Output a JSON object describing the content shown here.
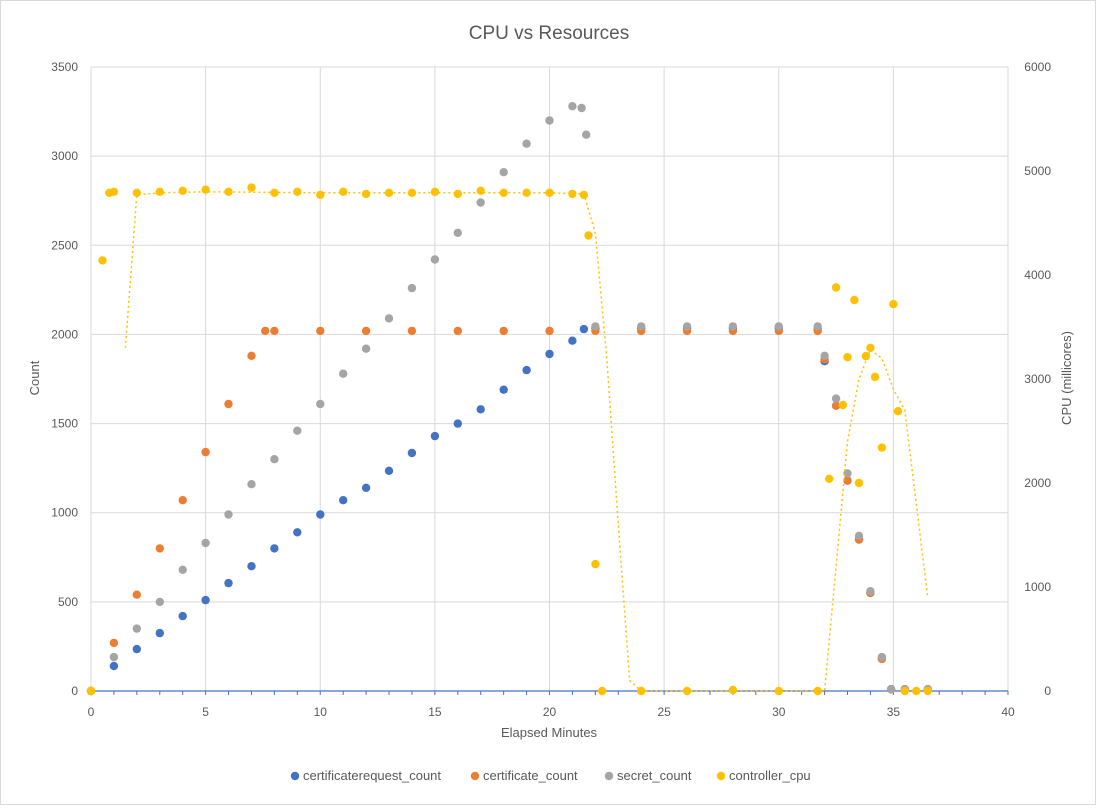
{
  "chart_data": {
    "type": "scatter",
    "title": "CPU vs Resources",
    "xlabel": "Elapsed Minutes",
    "ylabel": "Count",
    "y2label": "CPU (millicores)",
    "xlim": [
      0,
      40
    ],
    "ylim": [
      0,
      3500
    ],
    "y2lim": [
      0,
      6000
    ],
    "xticks": [
      "0",
      "5",
      "10",
      "15",
      "20",
      "25",
      "30",
      "35",
      "40"
    ],
    "yticks": [
      "0",
      "500",
      "1000",
      "1500",
      "2000",
      "2500",
      "3000",
      "3500"
    ],
    "y2ticks": [
      "0",
      "1000",
      "2000",
      "3000",
      "4000",
      "5000",
      "6000"
    ],
    "grid": true,
    "legend_position": "bottom",
    "series": [
      {
        "name": "certificaterequest_count",
        "axis": "left",
        "color": "#4472C4",
        "x": [
          0,
          1,
          2,
          3,
          4,
          5,
          6,
          7,
          8,
          9,
          10,
          11,
          12,
          13,
          14,
          15,
          16,
          17,
          18,
          19,
          20,
          21,
          21.5,
          22,
          24,
          26,
          28,
          30,
          31.7,
          32,
          32.5,
          33,
          33.5,
          34,
          34.5,
          34.9,
          35.5,
          36.5
        ],
        "y": [
          0,
          140,
          235,
          325,
          420,
          510,
          605,
          700,
          800,
          890,
          990,
          1070,
          1140,
          1235,
          1335,
          1430,
          1500,
          1580,
          1690,
          1800,
          1890,
          1965,
          2030,
          2035,
          2035,
          2035,
          2035,
          2035,
          2030,
          1850,
          1600,
          1180,
          850,
          550,
          180,
          10,
          10,
          10
        ]
      },
      {
        "name": "certificate_count",
        "axis": "left",
        "color": "#ED7D31",
        "x": [
          0,
          1,
          2,
          3,
          4,
          5,
          6,
          7,
          7.6,
          8,
          10,
          12,
          14,
          16,
          18,
          20,
          22,
          24,
          26,
          28,
          30,
          31.7,
          32,
          32.5,
          33,
          33.5,
          34,
          34.5,
          34.9,
          35.5,
          36.5
        ],
        "y": [
          0,
          270,
          540,
          800,
          1070,
          1340,
          1610,
          1880,
          2020,
          2020,
          2020,
          2020,
          2020,
          2020,
          2020,
          2020,
          2020,
          2020,
          2020,
          2020,
          2020,
          2020,
          1860,
          1600,
          1180,
          850,
          550,
          180,
          10,
          10,
          10
        ]
      },
      {
        "name": "secret_count",
        "axis": "left",
        "color": "#A5A5A5",
        "x": [
          0,
          1,
          2,
          3,
          4,
          5,
          6,
          7,
          8,
          9,
          10,
          11,
          12,
          13,
          14,
          15,
          16,
          17,
          18,
          19,
          20,
          21,
          21.4,
          21.6,
          22,
          24,
          26,
          28,
          30,
          31.7,
          32,
          32.5,
          33,
          33.5,
          34,
          34.5,
          34.9,
          35.5,
          36.5
        ],
        "y": [
          0,
          190,
          350,
          500,
          680,
          830,
          990,
          1160,
          1300,
          1460,
          1610,
          1780,
          1920,
          2090,
          2260,
          2420,
          2570,
          2740,
          2910,
          3070,
          3200,
          3280,
          3270,
          3120,
          2045,
          2045,
          2045,
          2045,
          2045,
          2045,
          1880,
          1640,
          1220,
          870,
          560,
          190,
          10,
          10,
          10
        ]
      },
      {
        "name": "controller_cpu",
        "axis": "right",
        "color": "#FFC000",
        "x": [
          0,
          0.5,
          0.8,
          1,
          2,
          3,
          4,
          5,
          6,
          7,
          8,
          9,
          10,
          11,
          12,
          13,
          14,
          15,
          16,
          17,
          18,
          19,
          20,
          21,
          21.5,
          21.7,
          22,
          22.3,
          24,
          26,
          28,
          30,
          31.7,
          32.2,
          32.5,
          32.8,
          33,
          33.3,
          33.5,
          33.8,
          34,
          34.2,
          34.5,
          35,
          35.2,
          35.5,
          36,
          36.5
        ],
        "y": [
          0,
          4140,
          4790,
          4800,
          4790,
          4800,
          4810,
          4820,
          4800,
          4840,
          4790,
          4800,
          4770,
          4800,
          4780,
          4790,
          4790,
          4800,
          4780,
          4810,
          4790,
          4790,
          4790,
          4780,
          4770,
          4380,
          1220,
          0,
          0,
          0,
          10,
          0,
          0,
          2040,
          3880,
          2750,
          3210,
          3760,
          2000,
          3220,
          3300,
          3020,
          2340,
          3720,
          2690,
          0,
          0,
          0
        ]
      },
      {
        "name": "controller_cpu moving average",
        "axis": "right",
        "color": "#FFC000",
        "line": "dotted",
        "x": [
          1.5,
          2,
          3,
          5,
          10,
          15,
          20,
          21.5,
          22,
          22.5,
          23,
          23.5,
          24,
          30,
          32,
          32.5,
          33,
          33.5,
          34,
          34.5,
          35,
          35.5,
          36,
          36.5
        ],
        "y": [
          3300,
          4770,
          4790,
          4800,
          4790,
          4790,
          4790,
          4780,
          4400,
          3200,
          1600,
          100,
          0,
          0,
          0,
          1200,
          2400,
          3000,
          3280,
          3200,
          2900,
          2700,
          1800,
          900
        ]
      }
    ],
    "legend": [
      "certificaterequest_count",
      "certificate_count",
      "secret_count",
      "controller_cpu"
    ]
  }
}
